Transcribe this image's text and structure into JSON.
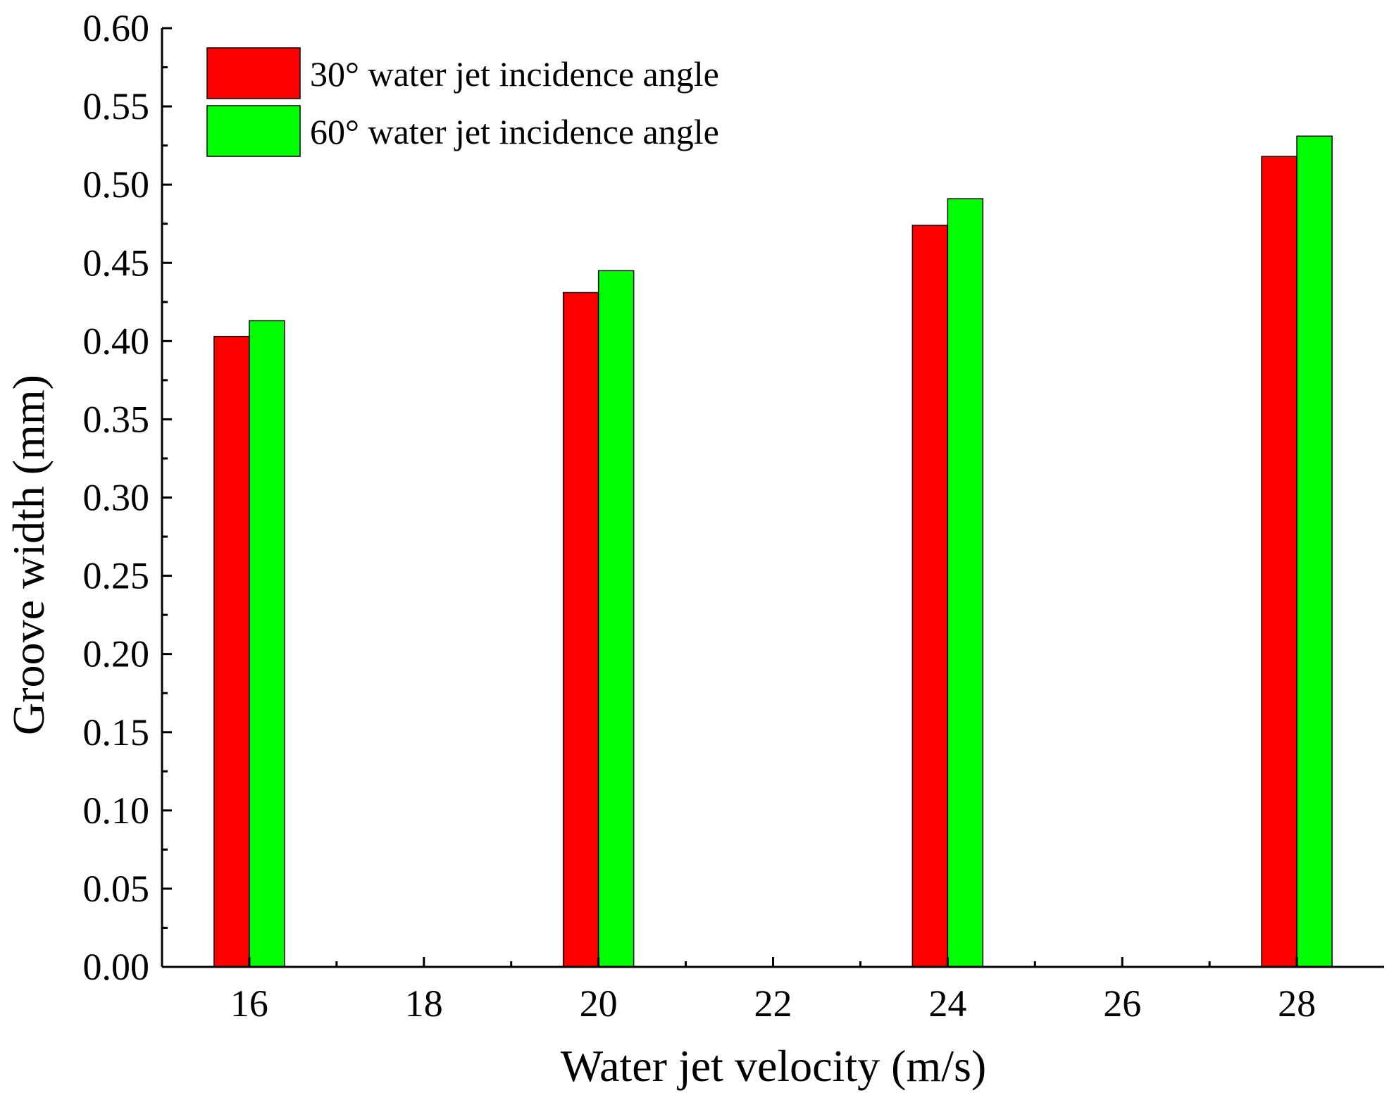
{
  "chart_data": {
    "type": "bar",
    "title": "",
    "xlabel": "Water jet velocity (m/s)",
    "ylabel": "Groove width (mm)",
    "x_ticks": [
      "16",
      "18",
      "20",
      "22",
      "24",
      "26",
      "28"
    ],
    "x_tick_values": [
      16,
      18,
      20,
      22,
      24,
      26,
      28
    ],
    "xlim": [
      15,
      29
    ],
    "y_ticks": [
      "0.00",
      "0.05",
      "0.10",
      "0.15",
      "0.20",
      "0.25",
      "0.30",
      "0.35",
      "0.40",
      "0.45",
      "0.50",
      "0.55",
      "0.60"
    ],
    "ylim": [
      0,
      0.6
    ],
    "categories": [
      16,
      20,
      24,
      28
    ],
    "series": [
      {
        "name": "30° water jet incidence angle",
        "color": "#ff0000",
        "values": [
          0.403,
          0.431,
          0.474,
          0.518
        ]
      },
      {
        "name": "60° water jet incidence angle",
        "color": "#00ff00",
        "values": [
          0.413,
          0.445,
          0.491,
          0.531
        ]
      }
    ],
    "grid": false,
    "legend_position": "top-left"
  }
}
